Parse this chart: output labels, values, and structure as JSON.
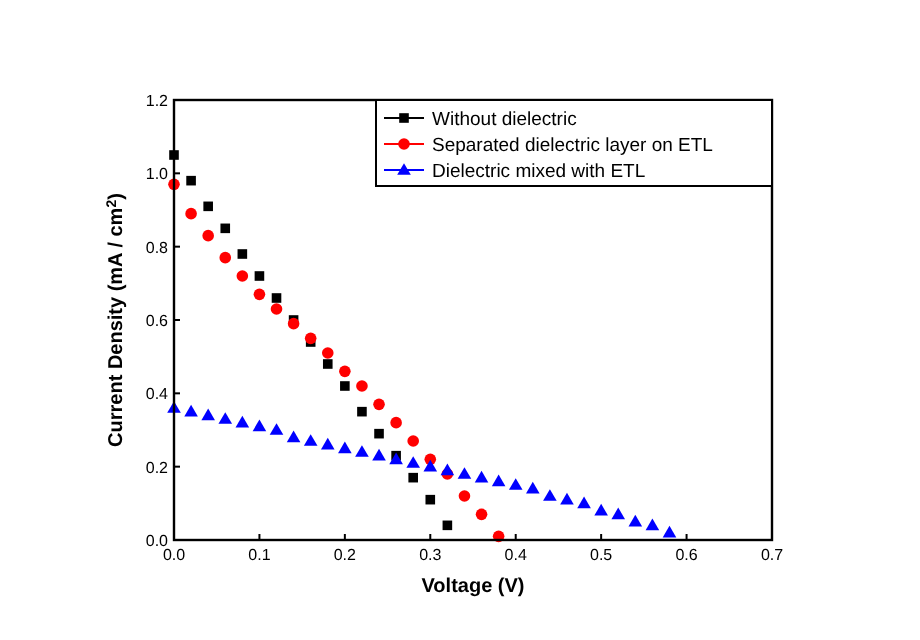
{
  "chart_data": {
    "type": "scatter",
    "xlabel": "Voltage (V)",
    "ylabel": "Current Density (mA / cm$^{2}$)",
    "xlim": [
      0,
      0.7
    ],
    "xticks": [
      {
        "value": 0,
        "label": "0.0"
      },
      0.1,
      0.2,
      0.3,
      0.4,
      0.5,
      0.6,
      0.7
    ],
    "ylim": [
      0,
      1.2
    ],
    "yticks": [
      {
        "value": 0,
        "label": "0.0"
      },
      0.2,
      0.4,
      0.6,
      0.8,
      {
        "value": 1,
        "label": "1.0"
      },
      1.2
    ],
    "legend": "top right",
    "grid": false,
    "series": [
      {
        "name": "Without dielectric",
        "color": "#000000",
        "marker": "square",
        "x": [
          0,
          0.02,
          0.04,
          0.06,
          0.08,
          0.1,
          0.12,
          0.14,
          0.16,
          0.18,
          0.2,
          0.22,
          0.24,
          0.26,
          0.28,
          0.3,
          0.32
        ],
        "values": [
          1.05,
          0.98,
          0.91,
          0.85,
          0.78,
          0.72,
          0.66,
          0.6,
          0.54,
          0.48,
          0.42,
          0.35,
          0.29,
          0.23,
          0.17,
          0.11,
          0.04
        ]
      },
      {
        "name": "Separated dielectric layer on ETL",
        "color": "#ff0000",
        "marker": "circle",
        "x": [
          0,
          0.02,
          0.04,
          0.06,
          0.08,
          0.1,
          0.12,
          0.14,
          0.16,
          0.18,
          0.2,
          0.22,
          0.24,
          0.26,
          0.28,
          0.3,
          0.32,
          0.34,
          0.36,
          0.38
        ],
        "values": [
          0.97,
          0.89,
          0.83,
          0.77,
          0.72,
          0.67,
          0.63,
          0.59,
          0.55,
          0.51,
          0.46,
          0.42,
          0.37,
          0.32,
          0.27,
          0.22,
          0.18,
          0.12,
          0.07,
          0.01
        ]
      },
      {
        "name": "Dielectric mixed with ETL",
        "color": "#0000ff",
        "marker": "triangle",
        "x": [
          0,
          0.02,
          0.04,
          0.06,
          0.08,
          0.1,
          0.12,
          0.14,
          0.16,
          0.18,
          0.2,
          0.22,
          0.24,
          0.26,
          0.28,
          0.3,
          0.32,
          0.34,
          0.36,
          0.38,
          0.4,
          0.42,
          0.44,
          0.46,
          0.48,
          0.5,
          0.52,
          0.54,
          0.56,
          0.58
        ],
        "values": [
          0.36,
          0.35,
          0.34,
          0.33,
          0.32,
          0.31,
          0.3,
          0.28,
          0.27,
          0.26,
          0.25,
          0.24,
          0.23,
          0.22,
          0.21,
          0.2,
          0.19,
          0.18,
          0.17,
          0.16,
          0.15,
          0.14,
          0.12,
          0.11,
          0.1,
          0.08,
          0.07,
          0.05,
          0.04,
          0.02
        ]
      }
    ]
  }
}
